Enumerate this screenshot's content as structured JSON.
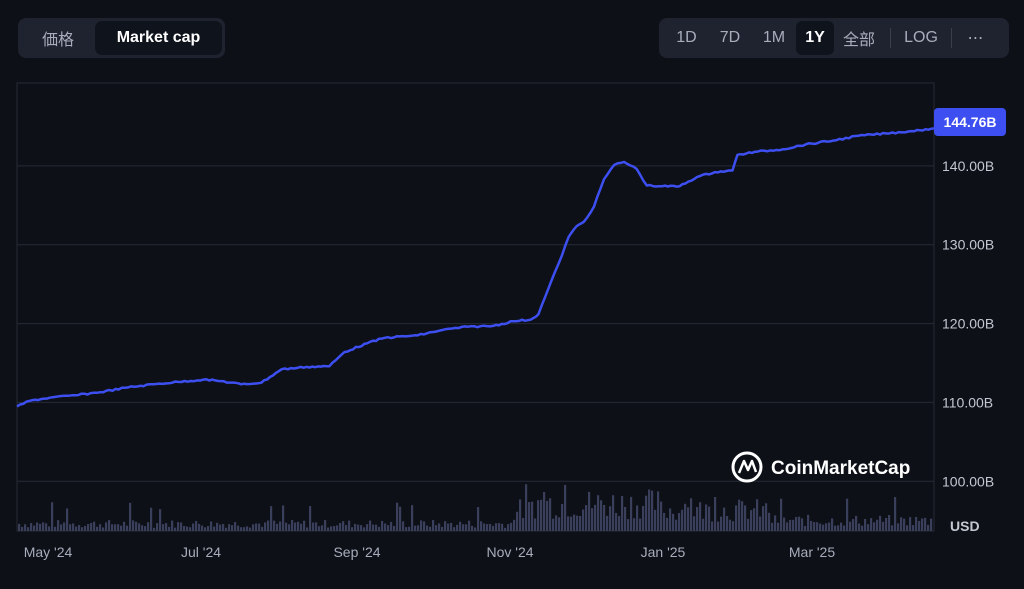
{
  "tabs": [
    {
      "label": "価格",
      "active": false
    },
    {
      "label": "Market cap",
      "active": true
    }
  ],
  "ranges": [
    "1D",
    "7D",
    "1M",
    "1Y",
    "全部",
    "LOG",
    "⋯"
  ],
  "selected_range": "1Y",
  "currency_label": "USD",
  "watermark": "CoinMarketCap",
  "colors": {
    "line": "#3d4ff0",
    "badge": "#3d4ff0",
    "volume": "#3a3f5c",
    "grid": "#262a36"
  },
  "chart_data": {
    "type": "line",
    "title": "",
    "xlabel": "",
    "ylabel": "",
    "x_tick_labels": [
      "May '24",
      "Jul '24",
      "Sep '24",
      "Nov '24",
      "Jan '25",
      "Mar '25"
    ],
    "y_ticks": [
      100,
      110,
      120,
      130,
      140
    ],
    "y_tick_labels": [
      "100.00B",
      "110.00B",
      "120.00B",
      "130.00B",
      "140.00B"
    ],
    "ylim": [
      93.7,
      150.5
    ],
    "x_range": [
      "2024-04-22",
      "2025-04-21"
    ],
    "current_value_label": "144.76B",
    "series": [
      {
        "values_unit": "billion USD",
        "points": [
          [
            "2024-04-22",
            109.5
          ],
          [
            "2024-04-27",
            110.2
          ],
          [
            "2024-05-05",
            110.6
          ],
          [
            "2024-05-15",
            110.9
          ],
          [
            "2024-05-25",
            111.3
          ],
          [
            "2024-06-05",
            111.9
          ],
          [
            "2024-06-15",
            112.3
          ],
          [
            "2024-06-25",
            112.6
          ],
          [
            "2024-07-05",
            112.9
          ],
          [
            "2024-07-12",
            112.7
          ],
          [
            "2024-07-20",
            112.3
          ],
          [
            "2024-07-28",
            112.5
          ],
          [
            "2024-08-05",
            114.2
          ],
          [
            "2024-08-15",
            114.5
          ],
          [
            "2024-08-24",
            114.6
          ],
          [
            "2024-08-30",
            116.4
          ],
          [
            "2024-09-08",
            117.5
          ],
          [
            "2024-09-15",
            118.2
          ],
          [
            "2024-09-28",
            118.5
          ],
          [
            "2024-10-08",
            119.2
          ],
          [
            "2024-10-18",
            119.6
          ],
          [
            "2024-10-28",
            119.7
          ],
          [
            "2024-11-05",
            120.3
          ],
          [
            "2024-11-12",
            120.5
          ],
          [
            "2024-11-15",
            121.2
          ],
          [
            "2024-11-19",
            124.5
          ],
          [
            "2024-11-23",
            127.6
          ],
          [
            "2024-11-27",
            131.0
          ],
          [
            "2024-11-30",
            132.3
          ],
          [
            "2024-12-03",
            132.9
          ],
          [
            "2024-12-07",
            134.8
          ],
          [
            "2024-12-11",
            138.3
          ],
          [
            "2024-12-15",
            140.1
          ],
          [
            "2024-12-19",
            140.5
          ],
          [
            "2024-12-24",
            139.6
          ],
          [
            "2024-12-28",
            137.5
          ],
          [
            "2025-01-03",
            137.4
          ],
          [
            "2025-01-10",
            137.4
          ],
          [
            "2025-01-17",
            138.6
          ],
          [
            "2025-01-24",
            139.2
          ],
          [
            "2025-01-31",
            139.4
          ],
          [
            "2025-02-02",
            141.4
          ],
          [
            "2025-02-10",
            141.8
          ],
          [
            "2025-02-20",
            142.1
          ],
          [
            "2025-03-01",
            142.7
          ],
          [
            "2025-03-12",
            143.2
          ],
          [
            "2025-03-22",
            143.8
          ],
          [
            "2025-04-02",
            144.1
          ],
          [
            "2025-04-12",
            144.4
          ],
          [
            "2025-04-21",
            144.76
          ]
        ]
      }
    ],
    "volume_bars": "unlabeled secondary bar series, peaks Nov 2024 to Feb 2025"
  }
}
